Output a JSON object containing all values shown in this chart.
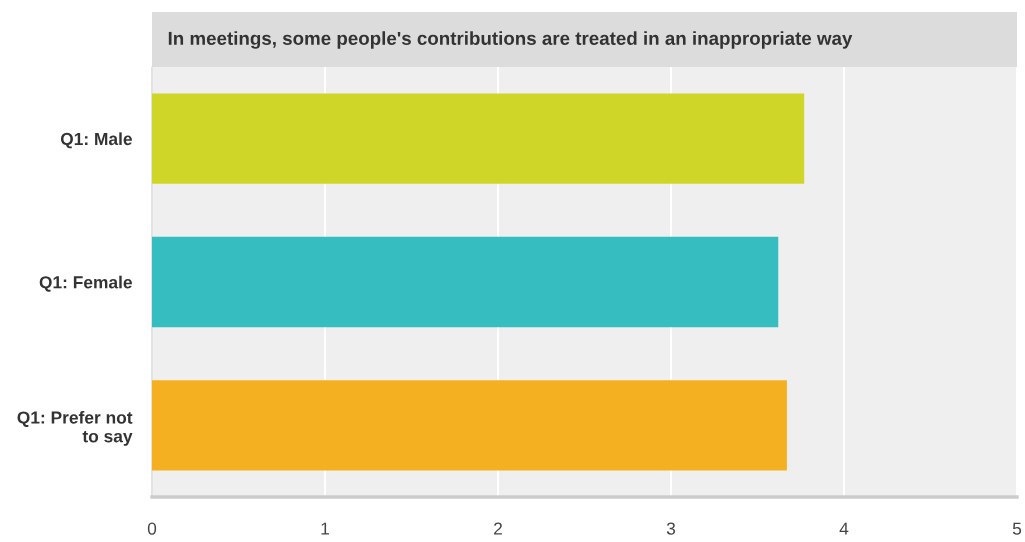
{
  "chart_data": {
    "type": "bar",
    "orientation": "horizontal",
    "title": "In meetings, some people's contributions are treated in an inappropriate way",
    "categories": [
      "Q1: Male",
      "Q1: Female",
      "Q1: Prefer not\nto say"
    ],
    "values": [
      3.77,
      3.62,
      3.67
    ],
    "colors": [
      "#cfd628",
      "#35bdbf",
      "#f5b021"
    ],
    "xlim": [
      0,
      5
    ],
    "xticks": [
      0,
      1,
      2,
      3,
      4,
      5
    ],
    "grid": "x"
  }
}
